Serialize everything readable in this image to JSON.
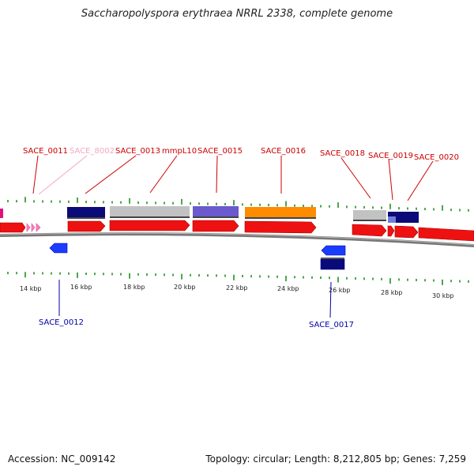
{
  "title": "Saccharopolyspora erythraea NRRL 2338, complete genome",
  "footer": {
    "accession": "Accession: NC_009142",
    "topology": "Topology: circular; Length: 8,212,805 bp; Genes: 7,259"
  },
  "colors": {
    "forward_cds": "#ee1111",
    "label_red": "#cc0000",
    "label_blue": "#0000aa",
    "label_pink": "#f4a6c4",
    "navy": "#0a0a78",
    "gray": "#c2c2c2",
    "purple": "#6a5acd",
    "orange": "#ff8c00",
    "blue": "#1a3cff",
    "pink": "#ff7fbf",
    "magenta": "#e0117f",
    "tick": "#118811",
    "backbone": "#888888"
  },
  "kbp_labels": [
    "14 kbp",
    "16 kbp",
    "18 kbp",
    "20 kbp",
    "22 kbp",
    "24 kbp",
    "26 kbp",
    "28 kbp",
    "30 kbp"
  ],
  "gene_labels": [
    {
      "text": "SACE_0011",
      "strand": "top",
      "color": "red"
    },
    {
      "text": "SACE_8002",
      "strand": "top",
      "color": "pink"
    },
    {
      "text": "SACE_0013",
      "strand": "top",
      "color": "red"
    },
    {
      "text": "mmpL10",
      "strand": "top",
      "color": "red"
    },
    {
      "text": "SACE_0015",
      "strand": "top",
      "color": "red"
    },
    {
      "text": "SACE_0016",
      "strand": "top",
      "color": "red"
    },
    {
      "text": "SACE_0018",
      "strand": "top",
      "color": "red"
    },
    {
      "text": "SACE_0019",
      "strand": "top",
      "color": "red"
    },
    {
      "text": "SACE_0020",
      "strand": "top",
      "color": "red"
    },
    {
      "text": "SACE_0012",
      "strand": "bottom",
      "color": "blue"
    },
    {
      "text": "SACE_0017",
      "strand": "bottom",
      "color": "blue"
    }
  ]
}
